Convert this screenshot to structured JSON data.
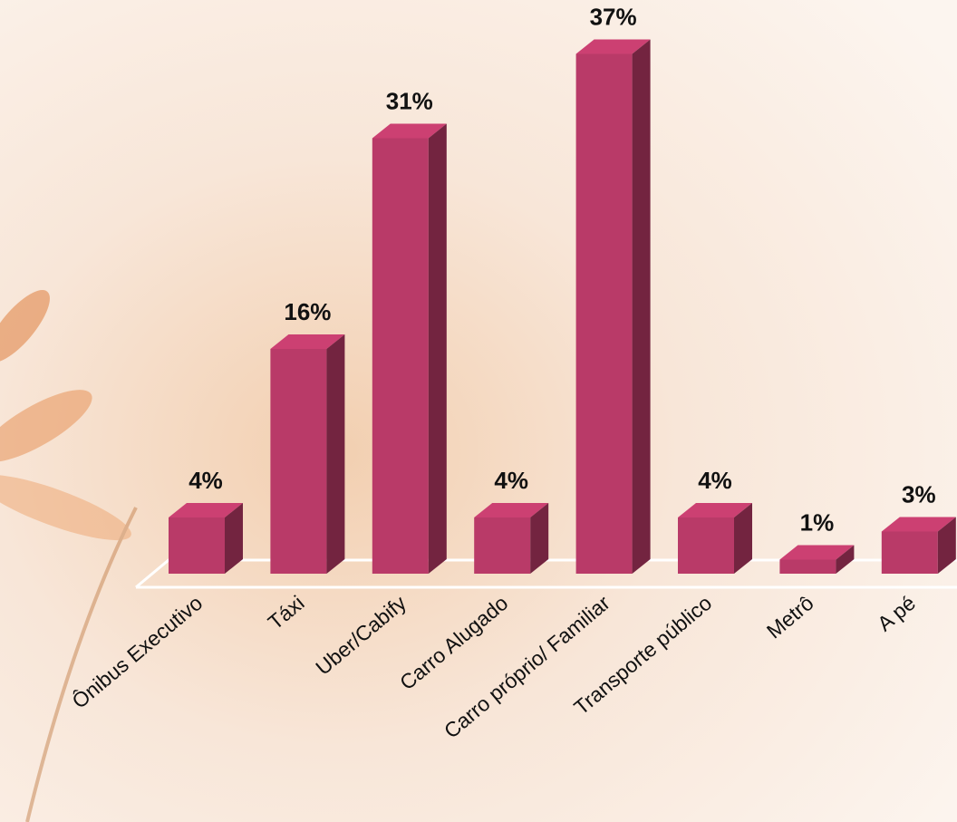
{
  "chart_data": {
    "type": "bar3d",
    "categories": [
      "Ônibus Executivo",
      "Táxi",
      "Uber/Cabify",
      "Carro Alugado",
      "Carro próprio/ Familiar",
      "Transporte público",
      "Metrô",
      "A pé"
    ],
    "values": [
      4,
      16,
      31,
      4,
      37,
      4,
      1,
      3
    ],
    "value_labels": [
      "4%",
      "16%",
      "31%",
      "4%",
      "37%",
      "4%",
      "1%",
      "3%"
    ],
    "color": "#b93a68"
  }
}
